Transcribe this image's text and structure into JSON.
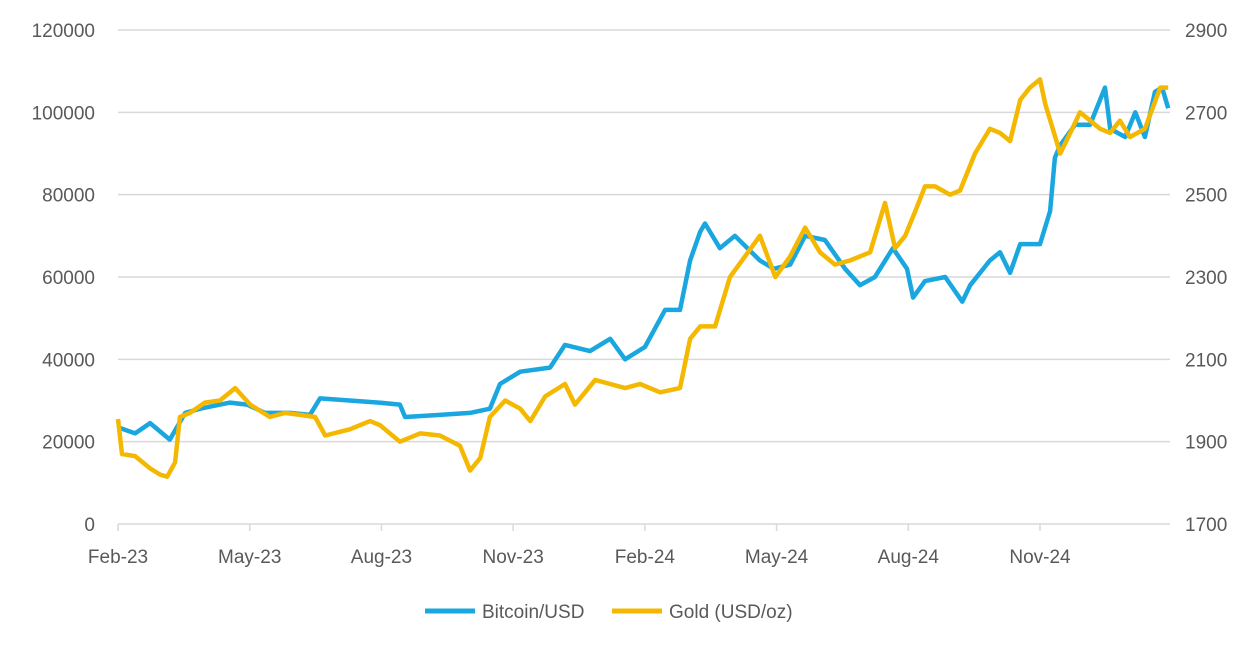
{
  "chart_data": {
    "type": "line",
    "title": "",
    "x_unit": "months since Feb-23",
    "x_ticks": [
      "Feb-23",
      "May-23",
      "Aug-23",
      "Nov-23",
      "Feb-24",
      "May-24",
      "Aug-24",
      "Nov-24"
    ],
    "x_tick_months": [
      0,
      3,
      6,
      9,
      12,
      15,
      18,
      21
    ],
    "xlim": [
      0,
      24
    ],
    "y_left": {
      "ticks": [
        "0",
        "20000",
        "40000",
        "60000",
        "80000",
        "100000",
        "120000"
      ],
      "ylim": [
        0,
        120000
      ]
    },
    "y_right": {
      "ticks": [
        "1700",
        "1900",
        "2100",
        "2300",
        "2500",
        "2700",
        "2900"
      ],
      "ylim": [
        1700,
        2900
      ]
    },
    "grid": true,
    "legend_position": "bottom",
    "series": [
      {
        "name": "Bitcoin/USD",
        "axis": "left",
        "color": "#1aa7e0",
        "points": [
          [
            0,
            23500
          ],
          [
            0.39,
            22000
          ],
          [
            0.73,
            24500
          ],
          [
            1.18,
            20500
          ],
          [
            1.53,
            27000
          ],
          [
            1.87,
            28000
          ],
          [
            2.55,
            29500
          ],
          [
            2.94,
            29000
          ],
          [
            3.35,
            27000
          ],
          [
            3.92,
            27000
          ],
          [
            4.37,
            26500
          ],
          [
            4.6,
            30500
          ],
          [
            5.28,
            30000
          ],
          [
            5.94,
            29500
          ],
          [
            6.42,
            29000
          ],
          [
            6.54,
            26000
          ],
          [
            7.33,
            26500
          ],
          [
            8.02,
            27000
          ],
          [
            8.47,
            28000
          ],
          [
            8.7,
            34000
          ],
          [
            9.16,
            37000
          ],
          [
            9.84,
            38000
          ],
          [
            10.18,
            43500
          ],
          [
            10.75,
            42000
          ],
          [
            11.21,
            45000
          ],
          [
            11.55,
            40000
          ],
          [
            12.0,
            43000
          ],
          [
            12.46,
            52000
          ],
          [
            12.8,
            52000
          ],
          [
            13.03,
            64000
          ],
          [
            13.26,
            71000
          ],
          [
            13.37,
            73000
          ],
          [
            13.71,
            67000
          ],
          [
            14.05,
            70000
          ],
          [
            14.62,
            64000
          ],
          [
            14.94,
            62000
          ],
          [
            15.31,
            63000
          ],
          [
            15.65,
            70000
          ],
          [
            16.1,
            69000
          ],
          [
            16.56,
            62000
          ],
          [
            16.9,
            58000
          ],
          [
            17.24,
            60000
          ],
          [
            17.65,
            67000
          ],
          [
            17.97,
            62000
          ],
          [
            18.11,
            55000
          ],
          [
            18.38,
            59000
          ],
          [
            18.84,
            60000
          ],
          [
            19.23,
            54000
          ],
          [
            19.41,
            58000
          ],
          [
            19.86,
            64000
          ],
          [
            20.09,
            66000
          ],
          [
            20.32,
            61000
          ],
          [
            20.55,
            68000
          ],
          [
            21.0,
            68000
          ],
          [
            21.23,
            76000
          ],
          [
            21.34,
            89000
          ],
          [
            21.46,
            92000
          ],
          [
            21.8,
            97000
          ],
          [
            22.14,
            97000
          ],
          [
            22.48,
            106000
          ],
          [
            22.6,
            96000
          ],
          [
            22.94,
            94000
          ],
          [
            23.17,
            100000
          ],
          [
            23.39,
            94000
          ],
          [
            23.62,
            105000
          ],
          [
            23.78,
            106000
          ],
          [
            23.92,
            101000
          ]
        ]
      },
      {
        "name": "Gold (USD/oz)",
        "axis": "right",
        "color": "#f5b800",
        "points": [
          [
            0,
            1955
          ],
          [
            0.09,
            1870
          ],
          [
            0.39,
            1865
          ],
          [
            0.73,
            1835
          ],
          [
            0.96,
            1820
          ],
          [
            1.12,
            1815
          ],
          [
            1.3,
            1850
          ],
          [
            1.41,
            1960
          ],
          [
            1.64,
            1970
          ],
          [
            1.98,
            1995
          ],
          [
            2.32,
            2000
          ],
          [
            2.67,
            2030
          ],
          [
            3.01,
            1990
          ],
          [
            3.46,
            1960
          ],
          [
            3.8,
            1970
          ],
          [
            4.15,
            1965
          ],
          [
            4.49,
            1960
          ],
          [
            4.72,
            1915
          ],
          [
            5.28,
            1930
          ],
          [
            5.74,
            1950
          ],
          [
            5.97,
            1940
          ],
          [
            6.42,
            1900
          ],
          [
            6.88,
            1920
          ],
          [
            7.33,
            1915
          ],
          [
            7.79,
            1890
          ],
          [
            8.02,
            1830
          ],
          [
            8.25,
            1860
          ],
          [
            8.47,
            1960
          ],
          [
            8.82,
            2000
          ],
          [
            9.16,
            1980
          ],
          [
            9.39,
            1950
          ],
          [
            9.73,
            2010
          ],
          [
            10.18,
            2040
          ],
          [
            10.41,
            1990
          ],
          [
            10.87,
            2050
          ],
          [
            11.21,
            2040
          ],
          [
            11.55,
            2030
          ],
          [
            11.89,
            2040
          ],
          [
            12.35,
            2020
          ],
          [
            12.8,
            2030
          ],
          [
            13.03,
            2150
          ],
          [
            13.26,
            2180
          ],
          [
            13.6,
            2180
          ],
          [
            13.94,
            2300
          ],
          [
            14.28,
            2350
          ],
          [
            14.62,
            2400
          ],
          [
            14.97,
            2300
          ],
          [
            15.31,
            2350
          ],
          [
            15.65,
            2420
          ],
          [
            15.99,
            2360
          ],
          [
            16.33,
            2330
          ],
          [
            16.67,
            2340
          ],
          [
            17.13,
            2360
          ],
          [
            17.47,
            2480
          ],
          [
            17.7,
            2370
          ],
          [
            17.93,
            2400
          ],
          [
            18.16,
            2460
          ],
          [
            18.38,
            2520
          ],
          [
            18.61,
            2520
          ],
          [
            18.95,
            2500
          ],
          [
            19.18,
            2510
          ],
          [
            19.52,
            2600
          ],
          [
            19.86,
            2660
          ],
          [
            20.09,
            2650
          ],
          [
            20.32,
            2630
          ],
          [
            20.55,
            2730
          ],
          [
            20.77,
            2760
          ],
          [
            21.0,
            2780
          ],
          [
            21.12,
            2720
          ],
          [
            21.46,
            2600
          ],
          [
            21.69,
            2650
          ],
          [
            21.91,
            2700
          ],
          [
            22.37,
            2660
          ],
          [
            22.6,
            2650
          ],
          [
            22.82,
            2680
          ],
          [
            23.05,
            2640
          ],
          [
            23.39,
            2660
          ],
          [
            23.74,
            2760
          ],
          [
            23.92,
            2760
          ]
        ]
      }
    ]
  }
}
